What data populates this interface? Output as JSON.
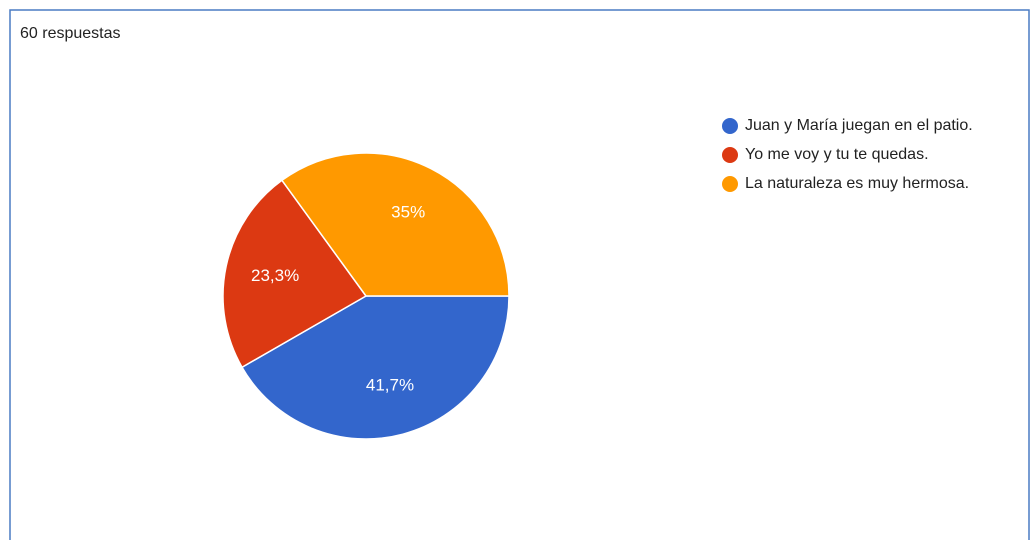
{
  "chart_data": {
    "type": "pie",
    "subtitle": "60 respuestas",
    "categories": [
      "Juan y María juegan en el patio.",
      "Yo me voy y tu te quedas.",
      "La naturaleza es muy hermosa."
    ],
    "values": [
      41.7,
      23.3,
      35
    ],
    "value_labels": [
      "41,7%",
      "23,3%",
      "35%"
    ],
    "colors": [
      "#3366cc",
      "#dc3912",
      "#ff9900"
    ],
    "legend": "right"
  }
}
